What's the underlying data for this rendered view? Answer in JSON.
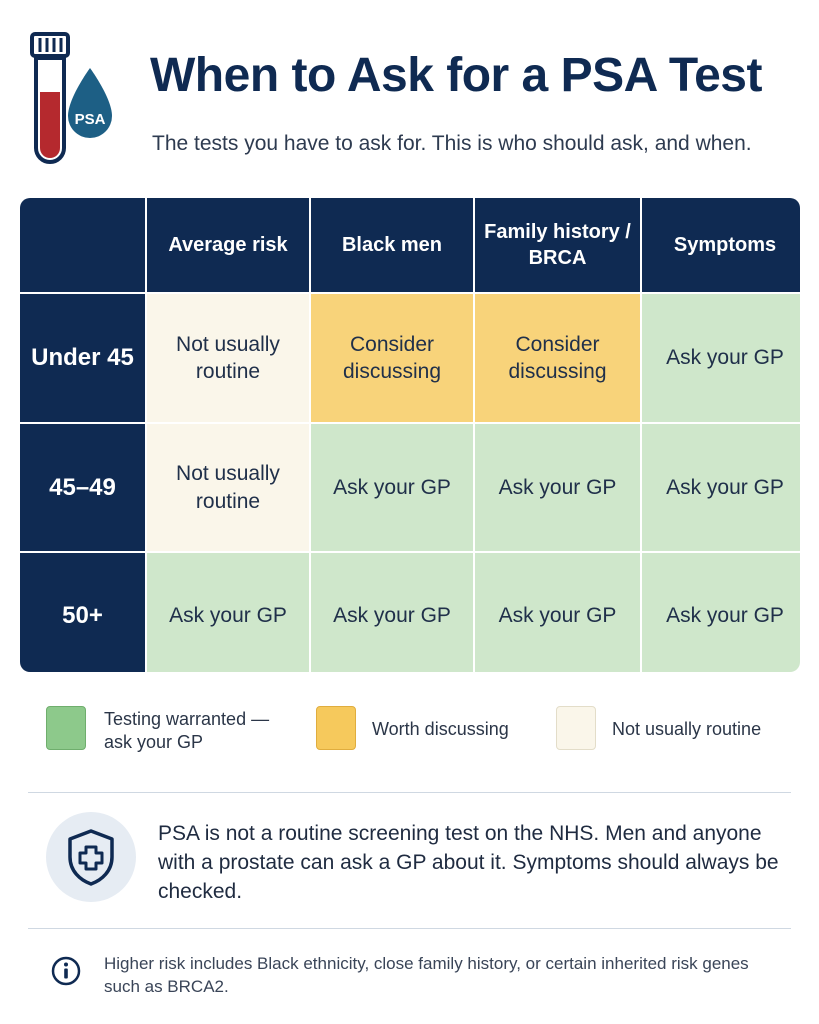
{
  "header": {
    "title": "When to Ask for a PSA Test",
    "subtitle": "The tests you have to ask for. This is who should ask, and when.",
    "icon": "blood-tube-and-droplet-icon",
    "icon_label": "PSA"
  },
  "table": {
    "columns": [
      "Average risk",
      "Black men",
      "Family history / BRCA",
      "Symptoms"
    ],
    "rows": [
      {
        "label": "Under 45",
        "cells": [
          "Not usually routine",
          "Consider discussing",
          "Consider discussing",
          "Ask your GP"
        ]
      },
      {
        "label": "45–49",
        "cells": [
          "Not usually routine",
          "Ask your GP",
          "Ask your GP",
          "Ask your GP"
        ]
      },
      {
        "label": "50+",
        "cells": [
          "Ask your GP",
          "Ask your GP",
          "Ask your GP",
          "Ask your GP"
        ]
      }
    ]
  },
  "legend": {
    "green": "Testing warranted — ask your GP",
    "amber": "Worth discussing",
    "cream": "Not usually routine"
  },
  "note": {
    "icon": "shield-plus-icon",
    "text": "PSA is not a routine screening test on the NHS. Men and anyone with a prostate can ask a GP about it. Symptoms should always be checked."
  },
  "footnote": {
    "icon": "info-icon",
    "text": "Higher risk includes Black ethnicity, close family history, or certain inherited risk genes such as BRCA2."
  },
  "colors": {
    "navy": "#0f2a52",
    "green": "#cfe7cb",
    "amber": "#f8d37a",
    "cream": "#faf6ea",
    "tube_red": "#b5292e",
    "drop_teal": "#1d5f85"
  }
}
